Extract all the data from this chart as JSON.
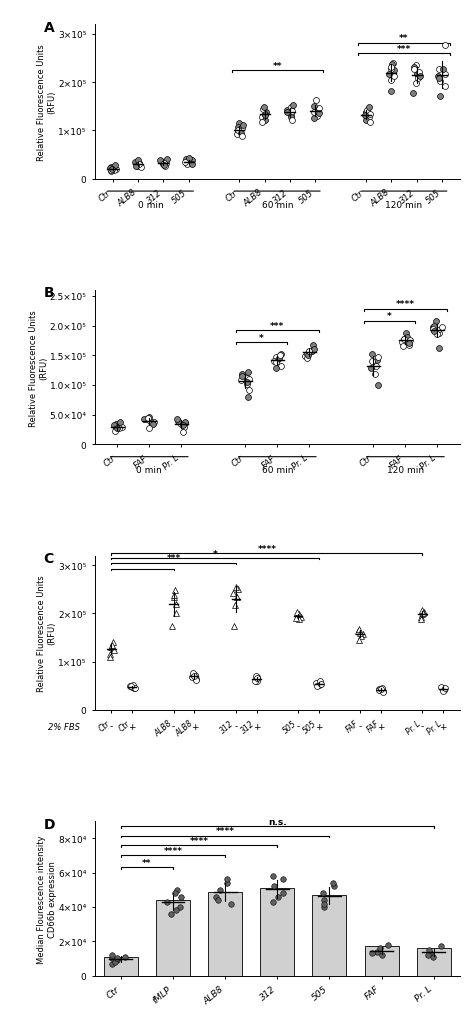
{
  "panel_A": {
    "ylabel": "Relative Fluorescence Units\n(RFU)",
    "ylim": [
      0,
      320000
    ],
    "yticks": [
      0,
      100000,
      200000,
      300000
    ],
    "ytick_labels": [
      "0",
      "1×10⁵",
      "2×10⁵",
      "3×10⁵"
    ],
    "data": {
      "0min_Ctr": [
        20000,
        25000,
        18000,
        22000,
        16000,
        28000,
        19000,
        21000
      ],
      "0min_ALB8": [
        27000,
        32000,
        29000,
        35000,
        24000,
        38000,
        30000,
        26000
      ],
      "0min_312": [
        30000,
        36000,
        33000,
        38000,
        27000,
        40000,
        32000,
        29000
      ],
      "0min_505": [
        32000,
        38000,
        35000,
        40000,
        30000,
        42000,
        34000,
        31000
      ],
      "60min_Ctr": [
        105000,
        115000,
        98000,
        108000,
        92000,
        112000,
        100000,
        95000,
        88000
      ],
      "60min_ALB8": [
        128000,
        138000,
        145000,
        122000,
        135000,
        148000,
        118000,
        132000
      ],
      "60min_312": [
        132000,
        142000,
        148000,
        128000,
        140000,
        152000,
        122000,
        138000
      ],
      "60min_505": [
        130000,
        140000,
        146000,
        126000,
        138000,
        150000,
        163000,
        136000
      ],
      "120min_Ctr": [
        128000,
        138000,
        143000,
        122000,
        135000,
        148000,
        118000,
        132000
      ],
      "120min_ALB8": [
        205000,
        225000,
        240000,
        182000,
        228000,
        238000,
        212000,
        218000,
        232000
      ],
      "120min_312": [
        198000,
        218000,
        235000,
        178000,
        222000,
        232000,
        208000,
        213000,
        228000
      ],
      "120min_505": [
        192000,
        212000,
        228000,
        172000,
        218000,
        228000,
        202000,
        208000,
        278000
      ]
    }
  },
  "panel_B": {
    "ylabel": "Relative Fluorescence Units\n(RFU)",
    "ylim": [
      0,
      260000
    ],
    "yticks": [
      0,
      50000,
      100000,
      150000,
      200000,
      250000
    ],
    "ytick_labels": [
      "0",
      "5.0×10⁴",
      "1.0×10⁵",
      "1.5×10⁵",
      "2.0×10⁵",
      "2.5×10⁵"
    ],
    "data": {
      "0min_Ctr": [
        30000,
        35000,
        28000,
        32000,
        25000,
        38000,
        22000,
        27000
      ],
      "0min_FAF": [
        38000,
        43000,
        40000,
        46000,
        36000,
        42000,
        44000,
        35000,
        28000
      ],
      "0min_PrL": [
        34000,
        39000,
        36000,
        42000,
        30000,
        38000,
        20000,
        32000
      ],
      "60min_Ctr": [
        108000,
        118000,
        112000,
        122000,
        102000,
        115000,
        110000,
        105000,
        92000,
        80000
      ],
      "60min_FAF": [
        132000,
        142000,
        147000,
        128000,
        140000,
        152000,
        138000,
        145000,
        150000
      ],
      "60min_PrL": [
        148000,
        158000,
        152000,
        168000,
        145000,
        160000,
        155000,
        150000,
        158000
      ],
      "120min_Ctr": [
        132000,
        142000,
        147000,
        128000,
        140000,
        152000,
        118000,
        100000
      ],
      "120min_FAF": [
        168000,
        178000,
        173000,
        188000,
        165000,
        180000,
        175000,
        170000,
        178000
      ],
      "120min_PrL": [
        188000,
        198000,
        193000,
        208000,
        185000,
        200000,
        195000,
        190000,
        198000,
        163000
      ]
    }
  },
  "panel_C": {
    "ylabel": "Relative Fluorescence Units\n(RFU)",
    "ylim": [
      0,
      320000
    ],
    "yticks": [
      0,
      100000,
      200000,
      300000
    ],
    "ytick_labels": [
      "0",
      "1×10⁵",
      "2×10⁵",
      "3×10⁵"
    ],
    "data_minus": {
      "Ctr": [
        130000,
        125000,
        140000,
        135000,
        115000,
        110000
      ],
      "ALB8": [
        220000,
        235000,
        200000,
        248000,
        238000,
        175000
      ],
      "312": [
        235000,
        250000,
        218000,
        255000,
        243000,
        175000
      ],
      "505": [
        193000,
        198000,
        188000,
        202000,
        190000
      ],
      "FAF": [
        158000,
        163000,
        153000,
        168000,
        160000,
        145000
      ],
      "PrL": [
        198000,
        203000,
        193000,
        208000,
        200000,
        188000
      ]
    },
    "data_plus": {
      "Ctr": [
        45000,
        50000,
        48000,
        52000,
        46000,
        49000
      ],
      "ALB8": [
        65000,
        73000,
        69000,
        76000,
        63000,
        71000
      ],
      "312": [
        61000,
        69000,
        64000,
        71000,
        59000,
        66000
      ],
      "505": [
        51000,
        56000,
        53000,
        59000,
        49000,
        54000
      ],
      "FAF": [
        39000,
        44000,
        41000,
        46000,
        38000,
        43000
      ],
      "PrL": [
        41000,
        46000,
        43000,
        48000,
        40000,
        45000
      ]
    }
  },
  "panel_D": {
    "ylabel": "Median Flourescence intensity\nCD66b expression",
    "ylim": [
      0,
      90000
    ],
    "yticks": [
      0,
      20000,
      40000,
      60000,
      80000
    ],
    "ytick_labels": [
      "0",
      "2×10⁴",
      "4×10⁴",
      "6×10⁴",
      "8×10⁴"
    ],
    "categories": [
      "Ctr",
      "fMLP",
      "ALB8",
      "312",
      "505",
      "FAF",
      "Pr. L"
    ],
    "bar_values": [
      11000,
      44000,
      49000,
      51000,
      47000,
      17000,
      16000
    ],
    "dot_data": {
      "Ctr": [
        7000,
        9000,
        11000,
        10000,
        8000,
        12000,
        10000
      ],
      "fMLP": [
        36000,
        40000,
        46000,
        50000,
        38000,
        48000,
        43000
      ],
      "ALB8": [
        42000,
        46000,
        50000,
        54000,
        44000,
        56000
      ],
      "312": [
        43000,
        48000,
        52000,
        56000,
        46000,
        58000
      ],
      "505": [
        40000,
        44000,
        48000,
        52000,
        42000,
        54000
      ],
      "FAF": [
        12000,
        14000,
        16000,
        18000,
        13000
      ],
      "PrL": [
        11000,
        13000,
        15000,
        17000,
        12000
      ]
    }
  }
}
